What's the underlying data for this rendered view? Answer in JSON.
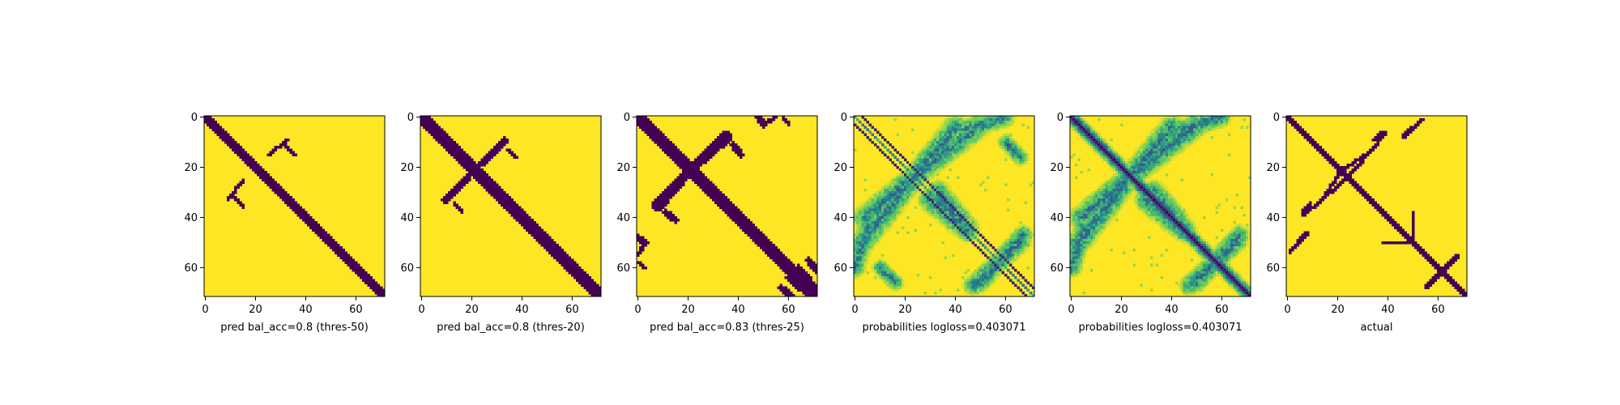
{
  "chart_data": [
    {
      "type": "heatmap",
      "title": "",
      "xlabel": "pred bal_acc=0.8 (thres-50)",
      "ylabel": "",
      "xlim": [
        0,
        71
      ],
      "ylim": [
        71,
        0
      ],
      "xticks": [
        0,
        20,
        40,
        60
      ],
      "yticks": [
        0,
        20,
        40,
        60
      ],
      "matrix_size": 72,
      "colormap": "viridis",
      "binary": true,
      "diagonal_band_width": 5,
      "blobs": [
        {
          "x1": 11,
          "y1": 31,
          "x2": 15,
          "y2": 36,
          "w": 1
        },
        {
          "x1": 25,
          "y1": 15,
          "x2": 33,
          "y2": 9,
          "w": 1
        }
      ]
    },
    {
      "type": "heatmap",
      "title": "",
      "xlabel": "pred bal_acc=0.8 (thres-20)",
      "ylabel": "",
      "xlim": [
        0,
        71
      ],
      "ylim": [
        71,
        0
      ],
      "xticks": [
        0,
        20,
        40,
        60
      ],
      "yticks": [
        0,
        20,
        40,
        60
      ],
      "matrix_size": 72,
      "colormap": "viridis",
      "binary": true,
      "diagonal_band_width": 6,
      "blobs": [
        {
          "x1": 10,
          "y1": 33,
          "x2": 21,
          "y2": 21,
          "w": 2
        },
        {
          "x1": 21,
          "y1": 21,
          "x2": 33,
          "y2": 9,
          "w": 2
        },
        {
          "x1": 13,
          "y1": 34,
          "x2": 16,
          "y2": 38,
          "w": 1
        }
      ]
    },
    {
      "type": "heatmap",
      "title": "",
      "xlabel": "pred bal_acc=0.83 (thres-25)",
      "ylabel": "",
      "xlim": [
        0,
        71
      ],
      "ylim": [
        71,
        0
      ],
      "xticks": [
        0,
        20,
        40,
        60
      ],
      "yticks": [
        0,
        20,
        40,
        60
      ],
      "matrix_size": 72,
      "colormap": "viridis",
      "binary": true,
      "diagonal_band_width": 6,
      "blobs": [
        {
          "x1": 7,
          "y1": 35,
          "x2": 21,
          "y2": 21,
          "w": 3
        },
        {
          "x1": 21,
          "y1": 21,
          "x2": 36,
          "y2": 8,
          "w": 3
        },
        {
          "x1": 11,
          "y1": 38,
          "x2": 15,
          "y2": 41,
          "w": 2
        },
        {
          "x1": 0,
          "y1": 48,
          "x2": 3,
          "y2": 50,
          "w": 2
        },
        {
          "x1": 0,
          "y1": 58,
          "x2": 3,
          "y2": 60,
          "w": 1
        },
        {
          "x1": 64,
          "y1": 60,
          "x2": 70,
          "y2": 67,
          "w": 2
        },
        {
          "x1": 50,
          "y1": 3,
          "x2": 55,
          "y2": 0,
          "w": 1
        },
        {
          "x1": 57,
          "y1": 68,
          "x2": 61,
          "y2": 71,
          "w": 2
        }
      ]
    },
    {
      "type": "heatmap",
      "title": "",
      "xlabel": "probabilities logloss=0.403071",
      "ylabel": "",
      "xlim": [
        0,
        71
      ],
      "ylim": [
        71,
        0
      ],
      "xticks": [
        0,
        20,
        40,
        60
      ],
      "yticks": [
        0,
        20,
        40,
        60
      ],
      "matrix_size": 72,
      "colormap": "viridis",
      "binary": false,
      "diagonal_band_width": 2,
      "secondary_band_offset": 3,
      "blobs": [
        {
          "x1": 3,
          "y1": 50,
          "x2": 21,
          "y2": 27,
          "w": 4
        },
        {
          "x1": 21,
          "y1": 27,
          "x2": 40,
          "y2": 4,
          "w": 4
        },
        {
          "x1": 44,
          "y1": 5,
          "x2": 60,
          "y2": 0,
          "w": 3
        },
        {
          "x1": 30,
          "y1": 33,
          "x2": 45,
          "y2": 45,
          "w": 4
        },
        {
          "x1": 47,
          "y1": 67,
          "x2": 66,
          "y2": 50,
          "w": 3
        },
        {
          "x1": 10,
          "y1": 60,
          "x2": 16,
          "y2": 66,
          "w": 2
        }
      ]
    },
    {
      "type": "heatmap",
      "title": "",
      "xlabel": "probabilities logloss=0.403071",
      "ylabel": "",
      "xlim": [
        0,
        71
      ],
      "ylim": [
        71,
        0
      ],
      "xticks": [
        0,
        20,
        40,
        60
      ],
      "yticks": [
        0,
        20,
        40,
        60
      ],
      "matrix_size": 72,
      "colormap": "viridis",
      "binary": false,
      "diagonal_band_width": 5,
      "blobs": [
        {
          "x1": 3,
          "y1": 50,
          "x2": 21,
          "y2": 27,
          "w": 4
        },
        {
          "x1": 21,
          "y1": 27,
          "x2": 40,
          "y2": 4,
          "w": 4
        },
        {
          "x1": 44,
          "y1": 5,
          "x2": 60,
          "y2": 0,
          "w": 3
        },
        {
          "x1": 30,
          "y1": 33,
          "x2": 45,
          "y2": 45,
          "w": 4
        },
        {
          "x1": 47,
          "y1": 67,
          "x2": 66,
          "y2": 50,
          "w": 3
        }
      ]
    },
    {
      "type": "heatmap",
      "title": "",
      "xlabel": "actual",
      "ylabel": "",
      "xlim": [
        0,
        71
      ],
      "ylim": [
        71,
        0
      ],
      "xticks": [
        0,
        20,
        40,
        60
      ],
      "yticks": [
        0,
        20,
        40,
        60
      ],
      "matrix_size": 72,
      "colormap": "viridis",
      "binary": true,
      "diagonal_band_width": 3,
      "blobs": [
        {
          "x1": 4,
          "y1": 50,
          "x2": 8,
          "y2": 46,
          "w": 1
        },
        {
          "x1": 6,
          "y1": 39,
          "x2": 14,
          "y2": 33,
          "w": 1
        },
        {
          "x1": 14,
          "y1": 33,
          "x2": 22,
          "y2": 20,
          "w": 1
        },
        {
          "x1": 25,
          "y1": 23,
          "x2": 30,
          "y2": 17,
          "w": 1
        },
        {
          "x1": 34,
          "y1": 9,
          "x2": 38,
          "y2": 6,
          "w": 1
        },
        {
          "x1": 48,
          "y1": 6,
          "x2": 54,
          "y2": 1,
          "w": 1
        },
        {
          "x1": 38,
          "y1": 50,
          "x2": 48,
          "y2": 50,
          "w": 1
        },
        {
          "x1": 61,
          "y1": 62,
          "x2": 68,
          "y2": 55,
          "w": 1
        }
      ]
    }
  ]
}
